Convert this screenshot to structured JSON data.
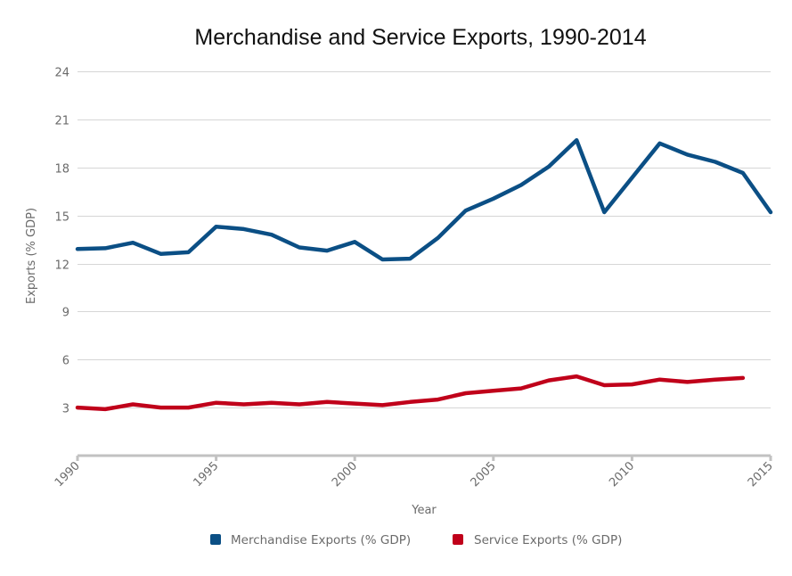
{
  "chart_data": {
    "type": "line",
    "title": "Merchandise and Service Exports, 1990-2014",
    "xlabel": "Year",
    "ylabel": "Exports (% GDP)",
    "xlim": [
      1990,
      2015
    ],
    "ylim": [
      0,
      24
    ],
    "x_ticks": [
      1990,
      1995,
      2000,
      2005,
      2010,
      2015
    ],
    "y_ticks": [
      3,
      6,
      9,
      12,
      15,
      18,
      21,
      24
    ],
    "grid": true,
    "legend_position": "bottom",
    "x": [
      1990,
      1991,
      1992,
      1993,
      1994,
      1995,
      1996,
      1997,
      1998,
      1999,
      2000,
      2001,
      2002,
      2003,
      2004,
      2005,
      2006,
      2007,
      2008,
      2009,
      2010,
      2011,
      2012,
      2013,
      2014,
      2015
    ],
    "series": [
      {
        "name": "Merchandise Exports (% GDP)",
        "color": "#0b4f85",
        "values": [
          12.9,
          12.95,
          13.3,
          12.6,
          12.7,
          14.3,
          14.15,
          13.8,
          13.0,
          12.8,
          13.35,
          12.25,
          12.3,
          13.6,
          15.3,
          16.05,
          16.9,
          18.05,
          19.7,
          15.2,
          17.35,
          19.5,
          18.8,
          18.35,
          17.65,
          15.2
        ]
      },
      {
        "name": "Service Exports (% GDP)",
        "color": "#c0001a",
        "values": [
          3.0,
          2.9,
          3.2,
          3.0,
          3.0,
          3.3,
          3.2,
          3.3,
          3.2,
          3.35,
          3.25,
          3.15,
          3.35,
          3.5,
          3.9,
          4.05,
          4.2,
          4.7,
          4.95,
          4.4,
          4.45,
          4.75,
          4.6,
          4.75,
          4.85,
          null
        ]
      }
    ]
  }
}
